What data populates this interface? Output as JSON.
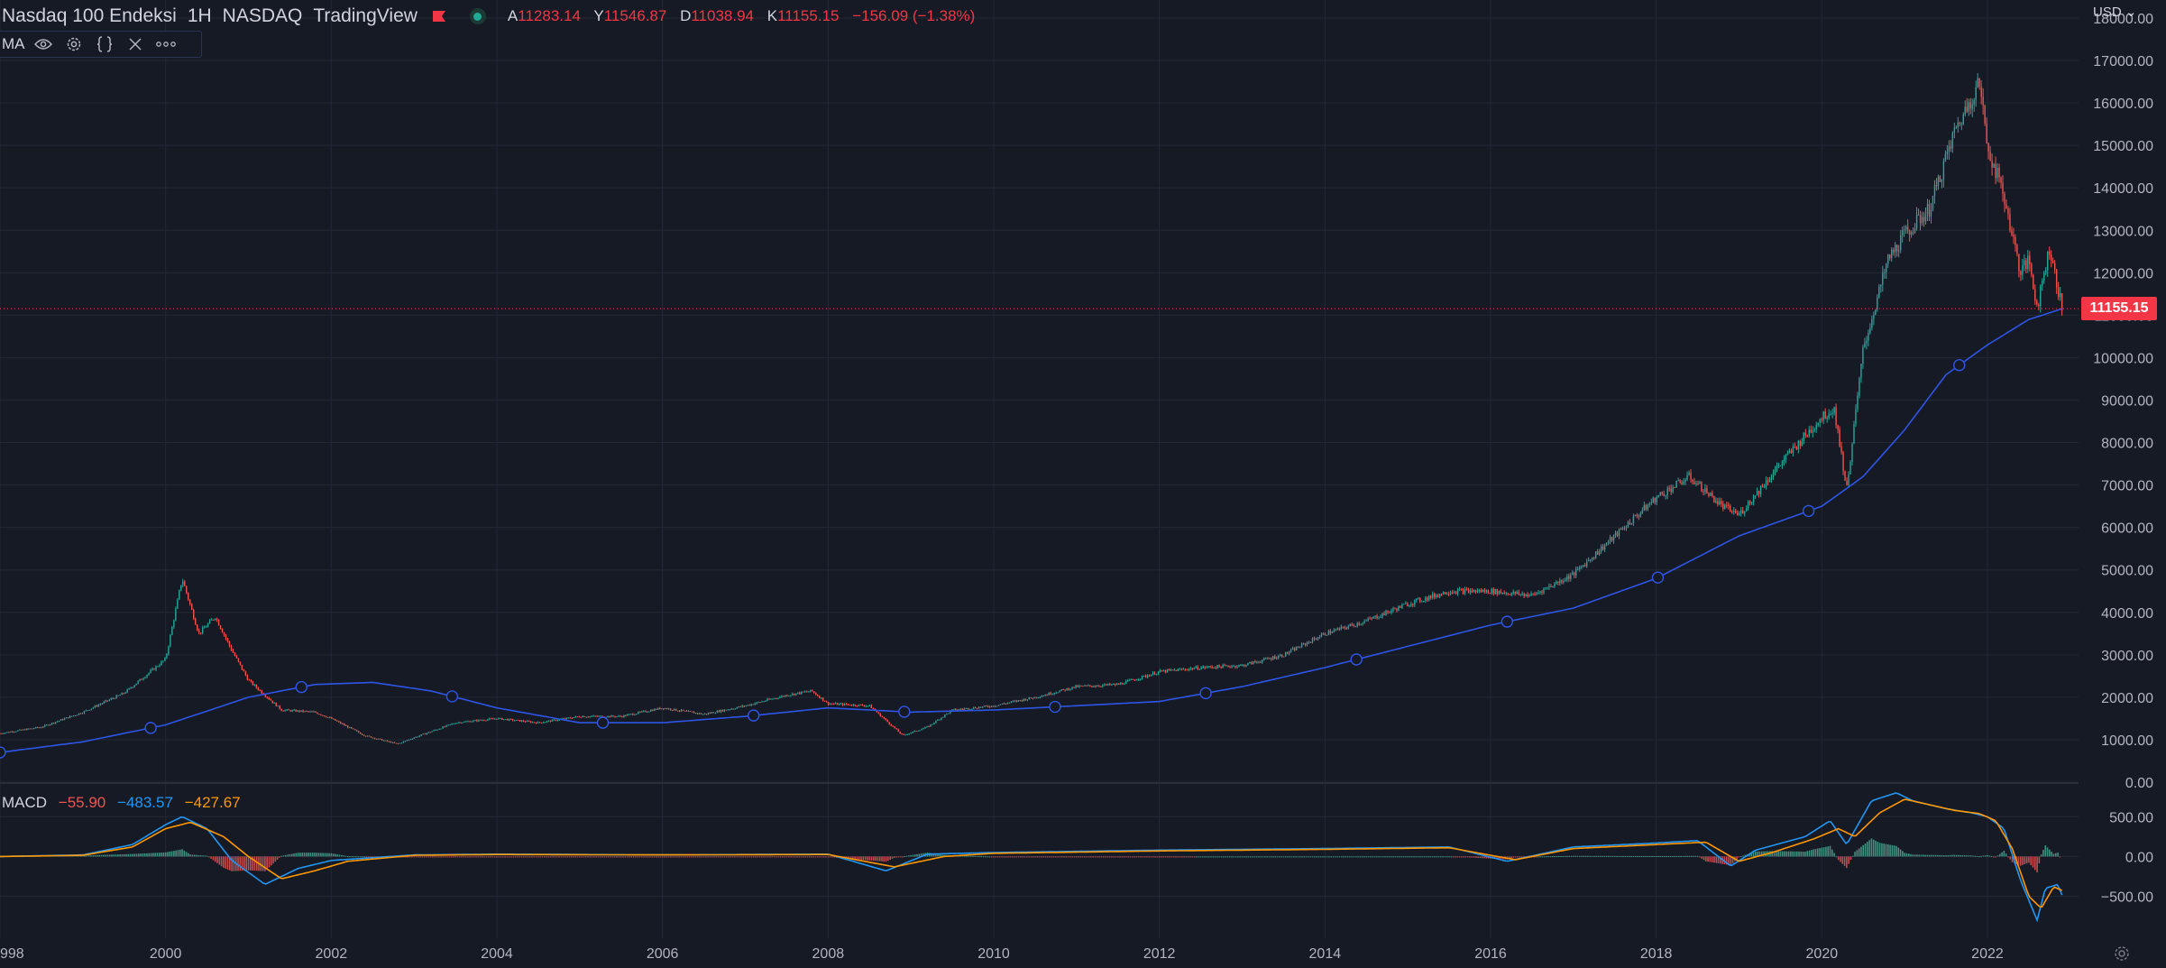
{
  "header": {
    "symbol_name": "Nasdaq 100 Endeksi",
    "interval": "1H",
    "exchange": "NASDAQ",
    "provider": "TradingView",
    "ohlc": [
      {
        "key": "A",
        "value": "11283.14"
      },
      {
        "key": "Y",
        "value": "11546.87"
      },
      {
        "key": "D",
        "value": "11038.94"
      },
      {
        "key": "K",
        "value": "11155.15"
      }
    ],
    "change": "−156.09 (−1.38%)"
  },
  "indicator_toolbar": {
    "label": "MA",
    "icons": [
      "eye-icon",
      "settings-icon",
      "source-code-icon",
      "close-icon",
      "more-icon"
    ]
  },
  "macd_legend": {
    "name": "MACD",
    "histogram": "−55.90",
    "macd": "−483.57",
    "signal": "−427.67"
  },
  "currency_button": "USD",
  "last_price_label": "11155.15",
  "colors": {
    "background": "#161a25",
    "grid": "#232837",
    "up": "#26a69a",
    "down": "#ef5350",
    "ma": "#2e55e6",
    "macd_line": "#2196f3",
    "signal_line": "#ff9800",
    "price_tag": "#f23645"
  },
  "chart_data": [
    {
      "type": "line",
      "title": "Nasdaq 100 Endeksi",
      "series": [
        {
          "x": [
            1998.0,
            1998.5,
            1999.0,
            1999.5,
            2000.0,
            2000.2,
            2000.4,
            2000.6,
            2000.8,
            2001.0,
            2001.4,
            2001.8,
            2002.0,
            2002.4,
            2002.8,
            2003.0,
            2003.5,
            2004.0,
            2004.5,
            2005.0,
            2005.5,
            2006.0,
            2006.5,
            2007.0,
            2007.5,
            2007.8,
            2008.0,
            2008.5,
            2008.9,
            2009.2,
            2009.5,
            2010.0,
            2010.5,
            2011.0,
            2011.5,
            2012.0,
            2012.5,
            2013.0,
            2013.5,
            2014.0,
            2014.5,
            2015.0,
            2015.5,
            2016.0,
            2016.5,
            2017.0,
            2017.5,
            2018.0,
            2018.4,
            2018.8,
            2019.0,
            2019.5,
            2020.0,
            2020.15,
            2020.3,
            2020.5,
            2020.8,
            2021.0,
            2021.3,
            2021.6,
            2021.9,
            2022.0,
            2022.2,
            2022.4,
            2022.5,
            2022.6,
            2022.75,
            2022.9
          ],
          "y": [
            1150,
            1300,
            1650,
            2100,
            2900,
            4800,
            3500,
            3900,
            3100,
            2400,
            1700,
            1650,
            1500,
            1100,
            900,
            1050,
            1400,
            1500,
            1400,
            1550,
            1550,
            1750,
            1600,
            1800,
            2050,
            2150,
            1850,
            1800,
            1100,
            1300,
            1700,
            1800,
            2000,
            2250,
            2300,
            2600,
            2700,
            2750,
            3000,
            3500,
            3800,
            4200,
            4500,
            4500,
            4400,
            4900,
            5800,
            6700,
            7200,
            6500,
            6300,
            7500,
            8600,
            8800,
            6900,
            10200,
            12300,
            12900,
            13500,
            15300,
            16500,
            15000,
            13800,
            12000,
            12300,
            11200,
            12600,
            11155
          ],
          "name": ""
        },
        {
          "x": [
            1998.0,
            1999.0,
            2000.0,
            2001.0,
            2001.8,
            2002.5,
            2003.2,
            2004.0,
            2005.0,
            2006.0,
            2007.0,
            2008.0,
            2009.0,
            2010.0,
            2011.0,
            2012.0,
            2013.0,
            2014.0,
            2015.0,
            2016.0,
            2017.0,
            2018.0,
            2019.0,
            2020.0,
            2020.5,
            2021.0,
            2021.5,
            2022.0,
            2022.5,
            2022.9
          ],
          "y": [
            700,
            950,
            1350,
            2000,
            2300,
            2350,
            2150,
            1750,
            1400,
            1400,
            1550,
            1750,
            1650,
            1700,
            1800,
            1900,
            2250,
            2700,
            3200,
            3700,
            4100,
            4800,
            5800,
            6500,
            7200,
            8300,
            9600,
            10300,
            10900,
            11150
          ],
          "name": ""
        }
      ],
      "ylim": [
        0,
        18000
      ],
      "yticks": [
        "0.00",
        "1000.00",
        "2000.00",
        "3000.00",
        "4000.00",
        "5000.00",
        "6000.00",
        "7000.00",
        "8000.00",
        "9000.00",
        "10000.00",
        "11000.00",
        "12000.00",
        "13000.00",
        "14000.00",
        "15000.00",
        "16000.00",
        "17000.00",
        "18000.00"
      ],
      "xlim": [
        1998.0,
        2023.1
      ],
      "xticks": [
        "998",
        "2000",
        "2002",
        "2004",
        "2006",
        "2008",
        "2010",
        "2012",
        "2014",
        "2016",
        "2018",
        "2020",
        "2022"
      ],
      "grid": true
    },
    {
      "type": "line",
      "title": "MACD",
      "series": [
        {
          "name": "MACD",
          "x": [
            1998.0,
            1999.0,
            1999.6,
            2000.0,
            2000.2,
            2000.5,
            2000.8,
            2001.2,
            2001.6,
            2002.0,
            2003.0,
            2004.0,
            2006.0,
            2008.0,
            2008.7,
            2009.2,
            2010.0,
            2012.0,
            2014.0,
            2015.5,
            2016.2,
            2017.0,
            2018.0,
            2018.5,
            2018.9,
            2019.2,
            2019.8,
            2020.1,
            2020.3,
            2020.6,
            2020.9,
            2021.1,
            2021.5,
            2021.8,
            2022.0,
            2022.2,
            2022.4,
            2022.6,
            2022.7,
            2022.85,
            2022.9
          ],
          "y": [
            0,
            20,
            150,
            400,
            500,
            350,
            -50,
            -350,
            -150,
            -50,
            20,
            30,
            20,
            30,
            -180,
            30,
            50,
            80,
            100,
            120,
            -60,
            120,
            170,
            200,
            -120,
            80,
            250,
            450,
            150,
            700,
            800,
            700,
            600,
            550,
            500,
            350,
            -300,
            -800,
            -400,
            -350,
            -483.57
          ]
        },
        {
          "name": "Signal",
          "x": [
            1998.0,
            1999.0,
            1999.6,
            2000.0,
            2000.3,
            2000.7,
            2001.0,
            2001.4,
            2001.8,
            2002.2,
            2003.0,
            2004.0,
            2006.0,
            2008.0,
            2008.8,
            2009.4,
            2010.0,
            2012.0,
            2014.0,
            2015.5,
            2016.3,
            2017.0,
            2018.0,
            2018.6,
            2019.0,
            2019.4,
            2019.9,
            2020.2,
            2020.4,
            2020.7,
            2021.0,
            2021.3,
            2021.6,
            2021.9,
            2022.1,
            2022.3,
            2022.5,
            2022.65,
            2022.8,
            2022.9
          ],
          "y": [
            0,
            15,
            120,
            350,
            430,
            250,
            0,
            -280,
            -180,
            -60,
            15,
            25,
            20,
            25,
            -130,
            0,
            40,
            70,
            90,
            110,
            -40,
            100,
            150,
            180,
            -60,
            50,
            220,
            350,
            250,
            550,
            720,
            650,
            580,
            540,
            450,
            100,
            -500,
            -650,
            -380,
            -427.67
          ]
        },
        {
          "name": "Histogram",
          "x": [
            1999.6,
            2000.2,
            2000.8,
            2001.2,
            2008.7,
            2016.2,
            2018.9,
            2020.1,
            2020.3,
            2020.6,
            2022.2,
            2022.4,
            2022.6,
            2022.7,
            2022.8,
            2022.9
          ],
          "y": [
            40,
            70,
            -60,
            -80,
            -50,
            -30,
            -70,
            90,
            -120,
            130,
            60,
            -180,
            -200,
            60,
            120,
            -55.9
          ]
        }
      ],
      "ylim": [
        -800,
        900
      ],
      "yticks": [
        "500.00",
        "0.00",
        "−500.00"
      ],
      "grid": true
    }
  ]
}
